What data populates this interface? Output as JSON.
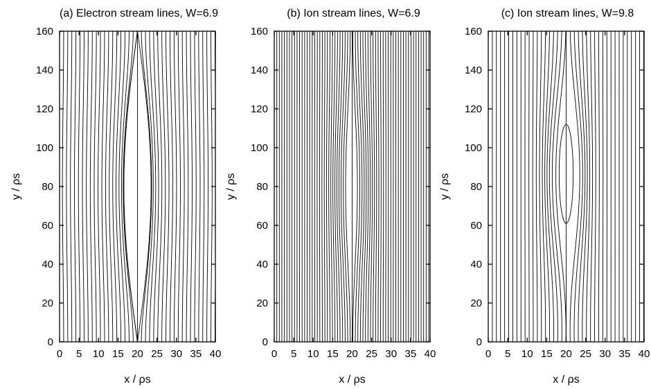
{
  "chart_data": [
    {
      "type": "line",
      "panel": "a",
      "title": "(a) Electron stream lines, W=6.9",
      "xlabel": "x / ρs",
      "ylabel": "y / ρs",
      "xlim": [
        0,
        40
      ],
      "ylim": [
        0,
        160
      ],
      "xticks": [
        0,
        5,
        10,
        15,
        20,
        25,
        30,
        35,
        40
      ],
      "yticks": [
        0,
        20,
        40,
        60,
        80,
        100,
        120,
        140,
        160
      ],
      "island_center": [
        20,
        80
      ],
      "separatrix_x_points": [
        [
          20,
          0
        ],
        [
          20,
          160
        ]
      ],
      "island_half_width_x": 3.5,
      "line_spacing_x": 1.05,
      "island_closed_contours": 0,
      "grid": false,
      "legend": "none"
    },
    {
      "type": "line",
      "panel": "b",
      "title": "(b) Ion stream lines, W=6.9",
      "xlabel": "x / ρs",
      "ylabel": "y / ρs",
      "xlim": [
        0,
        40
      ],
      "ylim": [
        0,
        160
      ],
      "xticks": [
        0,
        5,
        10,
        15,
        20,
        25,
        30,
        35,
        40
      ],
      "yticks": [
        0,
        20,
        40,
        60,
        80,
        100,
        120,
        140,
        160
      ],
      "island_center": [
        20,
        80
      ],
      "separatrix_x_points": [
        [
          20,
          0
        ],
        [
          20,
          160
        ]
      ],
      "line_spacing_x": 0.65,
      "max_displacement_x": 1.2,
      "island_closed_contours": 0,
      "grid": false,
      "legend": "none"
    },
    {
      "type": "line",
      "panel": "c",
      "title": "(c) Ion stream lines, W=9.8",
      "xlabel": "x / ρs",
      "ylabel": "y / ρs",
      "xlim": [
        0,
        40
      ],
      "ylim": [
        0,
        160
      ],
      "xticks": [
        0,
        5,
        10,
        15,
        20,
        25,
        30,
        35,
        40
      ],
      "yticks": [
        0,
        20,
        40,
        60,
        80,
        100,
        120,
        140,
        160
      ],
      "island_center": [
        20,
        86
      ],
      "separatrix_x_points": [
        [
          20,
          0
        ],
        [
          20,
          160
        ]
      ],
      "closed_contour": {
        "x_range": [
          18.2,
          21.8
        ],
        "y_range": [
          61,
          112
        ]
      },
      "line_spacing_x": 1.05,
      "max_displacement_x": 2.6,
      "island_closed_contours": 1,
      "grid": false,
      "legend": "none"
    }
  ]
}
